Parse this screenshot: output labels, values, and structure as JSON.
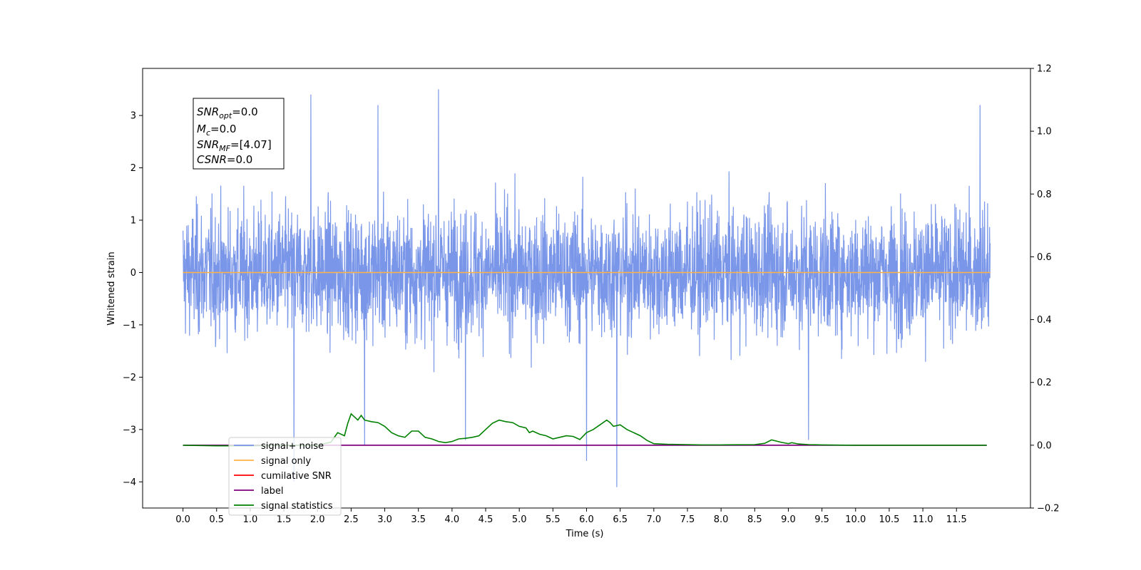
{
  "chart_data": {
    "type": "line",
    "xlabel": "Time (s)",
    "ylabel": "Whitened strain",
    "xlim": [
      -0.6,
      12.6
    ],
    "ylim": [
      -4.5,
      3.9
    ],
    "y2lim": [
      -0.2,
      1.2
    ],
    "x_ticks": [
      0.0,
      0.5,
      1.0,
      1.5,
      2.0,
      2.5,
      3.0,
      3.5,
      4.0,
      4.5,
      5.0,
      5.5,
      6.0,
      6.5,
      7.0,
      7.5,
      8.0,
      8.5,
      9.0,
      9.5,
      10.0,
      10.5,
      11.0,
      11.5
    ],
    "x_tick_labels": [
      "0.0",
      "0.5",
      "1.0",
      "1.5",
      "2.0",
      "2.5",
      "3.0",
      "3.5",
      "4.0",
      "4.5",
      "5.0",
      "5.5",
      "6.0",
      "6.5",
      "7.0",
      "7.5",
      "8.0",
      "8.5",
      "9.0",
      "9.5",
      "10.0",
      "10.5",
      "11.0",
      "11.5"
    ],
    "y_ticks": [
      -4,
      -3,
      -2,
      -1,
      0,
      1,
      2,
      3
    ],
    "y_tick_labels": [
      "−4",
      "−3",
      "−2",
      "−1",
      "0",
      "1",
      "2",
      "3"
    ],
    "y2_ticks": [
      -0.2,
      0.0,
      0.2,
      0.4,
      0.6,
      0.8,
      1.0,
      1.2
    ],
    "y2_tick_labels": [
      "−0.2",
      "0.0",
      "0.2",
      "0.4",
      "0.6",
      "0.8",
      "1.0",
      "1.2"
    ],
    "grid": false,
    "legend_position": "lower-left",
    "series": [
      {
        "name": "signal+ noise",
        "color": "#7a96e8",
        "axis": "left",
        "x_range": [
          0.0,
          12.0
        ],
        "typical_range": [
          -1.5,
          1.5
        ],
        "peaks": [
          {
            "x": 1.65,
            "y": -4.0
          },
          {
            "x": 1.9,
            "y": 3.4
          },
          {
            "x": 2.7,
            "y": -3.3
          },
          {
            "x": 2.9,
            "y": 3.2
          },
          {
            "x": 3.8,
            "y": 3.5
          },
          {
            "x": 4.2,
            "y": -3.2
          },
          {
            "x": 6.0,
            "y": -3.6
          },
          {
            "x": 6.45,
            "y": -4.1
          },
          {
            "x": 9.3,
            "y": -3.2
          },
          {
            "x": 11.85,
            "y": 3.2
          }
        ]
      },
      {
        "name": "signal only",
        "color": "#ffb347",
        "axis": "left",
        "x": [
          0.0,
          12.0
        ],
        "y": [
          0.0,
          0.0
        ]
      },
      {
        "name": "cumilative SNR",
        "color": "#ff0000",
        "axis": "right",
        "x": [],
        "y": []
      },
      {
        "name": "label",
        "color": "#800080",
        "axis": "right",
        "x": [
          0.0,
          11.95
        ],
        "y": [
          0.0,
          0.0
        ]
      },
      {
        "name": "signal statistics",
        "color": "#008000",
        "axis": "right",
        "x": [
          0.0,
          0.5,
          1.0,
          1.5,
          2.0,
          2.2,
          2.3,
          2.4,
          2.45,
          2.5,
          2.55,
          2.6,
          2.65,
          2.7,
          2.8,
          2.9,
          3.0,
          3.1,
          3.2,
          3.3,
          3.4,
          3.5,
          3.6,
          3.7,
          3.8,
          3.9,
          4.0,
          4.1,
          4.2,
          4.3,
          4.4,
          4.5,
          4.6,
          4.7,
          4.8,
          4.9,
          5.0,
          5.1,
          5.15,
          5.2,
          5.3,
          5.4,
          5.5,
          5.6,
          5.7,
          5.8,
          5.9,
          6.0,
          6.1,
          6.2,
          6.3,
          6.35,
          6.4,
          6.5,
          6.6,
          6.7,
          6.8,
          6.9,
          7.0,
          7.2,
          7.5,
          7.7,
          8.0,
          8.5,
          8.65,
          8.75,
          8.9,
          9.0,
          9.05,
          9.15,
          9.3,
          9.5,
          10.0,
          11.0,
          11.95
        ],
        "y": [
          0.0,
          -0.002,
          -0.002,
          0.0,
          0.0,
          0.01,
          0.04,
          0.03,
          0.07,
          0.1,
          0.09,
          0.08,
          0.095,
          0.08,
          0.075,
          0.072,
          0.06,
          0.04,
          0.03,
          0.025,
          0.045,
          0.045,
          0.025,
          0.02,
          0.012,
          0.008,
          0.012,
          0.02,
          0.022,
          0.025,
          0.03,
          0.05,
          0.07,
          0.08,
          0.075,
          0.072,
          0.06,
          0.055,
          0.04,
          0.045,
          0.035,
          0.03,
          0.02,
          0.025,
          0.03,
          0.028,
          0.018,
          0.04,
          0.05,
          0.065,
          0.08,
          0.072,
          0.06,
          0.065,
          0.05,
          0.04,
          0.03,
          0.015,
          0.005,
          0.003,
          0.002,
          0.001,
          0.001,
          0.002,
          0.006,
          0.017,
          0.009,
          0.005,
          0.008,
          0.004,
          0.002,
          0.001,
          0.0,
          0.0,
          0.0
        ]
      }
    ]
  },
  "annotation": {
    "snr_opt": {
      "sym": "SNR",
      "sub": "opt",
      "val": "=0.0"
    },
    "mc": {
      "sym": "M",
      "sub": "c",
      "val": "=0.0"
    },
    "snr_mf": {
      "sym": "SNR",
      "sub": "MF",
      "val": "=[4.07]"
    },
    "csnr": {
      "sym": "CSNR",
      "sub": "",
      "val": "=0.0"
    }
  }
}
